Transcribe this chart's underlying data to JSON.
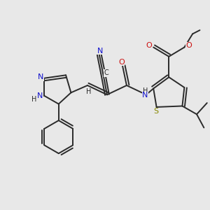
{
  "bg_color": "#e8e8e8",
  "bond_color": "#2a2a2a",
  "bond_width": 1.4,
  "dbo": 0.12,
  "tbo": 0.1,
  "colors": {
    "N": "#1010cc",
    "O": "#cc1010",
    "S": "#888800",
    "C": "#2a2a2a",
    "H": "#2a2a2a"
  },
  "fs": 8.0,
  "fs_small": 7.0
}
